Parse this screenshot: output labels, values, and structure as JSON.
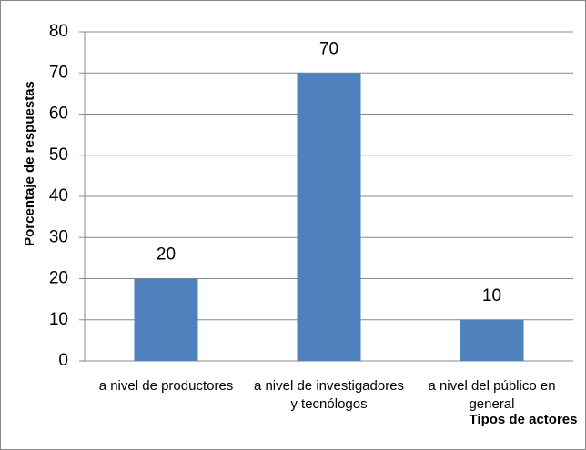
{
  "chart_data": {
    "type": "bar",
    "categories": [
      "a nivel de productores",
      "a nivel de investigadores y tecnólogos",
      "a nivel del público en general"
    ],
    "values": [
      20,
      70,
      10
    ],
    "color": "#4f81bd",
    "ylabel": "Porcentaje de respuestas",
    "xlabel": "Tipos de actores",
    "ylim": [
      0,
      80
    ],
    "yticks": [
      0,
      10,
      20,
      30,
      40,
      50,
      60,
      70,
      80
    ],
    "grid": true
  }
}
